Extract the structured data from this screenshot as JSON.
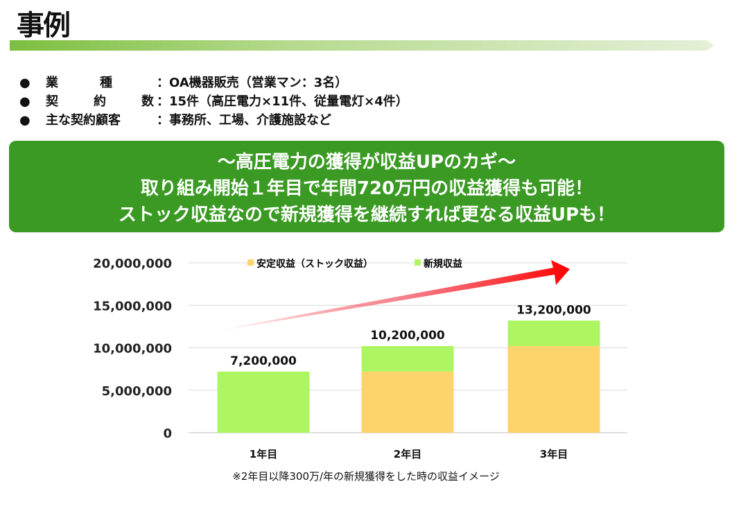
{
  "title": "事例",
  "info": [
    {
      "bullet": "●",
      "key": [
        "業",
        "種"
      ],
      "value": "：OA機器販売（営業マン：3名）"
    },
    {
      "bullet": "●",
      "key": [
        "契",
        "約",
        "数"
      ],
      "value": "：15件（高圧電力×11件、従量電灯×4件）"
    },
    {
      "bullet": "●",
      "key": [
        "主な契約顧客"
      ],
      "value": "：事務所、工場、介護施設など"
    }
  ],
  "banner": [
    "～高圧電力の獲得が収益UPのカギ～",
    "取り組み開始１年目で年間720万円の収益獲得も可能！",
    "ストック収益なので新規獲得を継続すれば更なる収益UPも！"
  ],
  "chart_data": {
    "type": "bar",
    "stacked": true,
    "categories": [
      "1年目",
      "2年目",
      "3年目"
    ],
    "series": [
      {
        "name": "安定収益（ストック収益）",
        "color": "#fdd36b",
        "values": [
          0,
          7200000,
          10200000
        ]
      },
      {
        "name": "新規収益",
        "color": "#aef562",
        "values": [
          7200000,
          3000000,
          3000000
        ]
      }
    ],
    "totals": [
      "7,200,000",
      "10,200,000",
      "13,200,000"
    ],
    "yticks": [
      "0",
      "5,000,000",
      "10,000,000",
      "15,000,000",
      "20,000,000"
    ],
    "ylim": [
      0,
      20000000
    ],
    "legend": "top",
    "grid": true
  },
  "note": "※2年目以降300万/年の新規獲得をした時の収益イメージ"
}
